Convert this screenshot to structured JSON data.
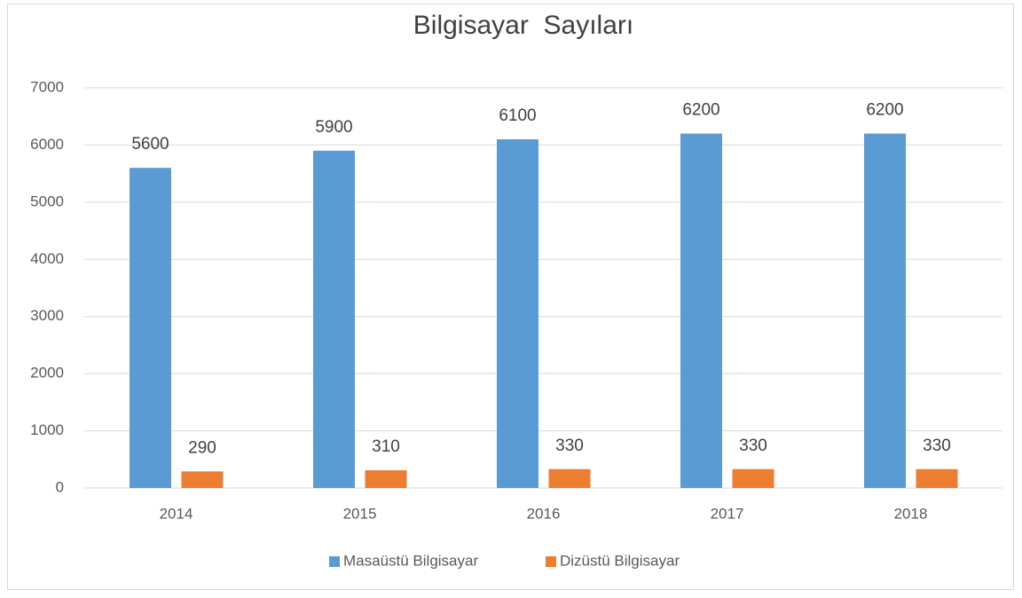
{
  "chart_data": {
    "type": "bar",
    "title": "Bilgisayar  Sayıları",
    "categories": [
      "2014",
      "2015",
      "2016",
      "2017",
      "2018"
    ],
    "series": [
      {
        "name": "Masaüstü Bilgisayar",
        "color": "#5b9bd5",
        "values": [
          5600,
          5900,
          6100,
          6200,
          6200
        ]
      },
      {
        "name": "Dizüstü Bilgisayar",
        "color": "#ed7d31",
        "values": [
          290,
          310,
          330,
          330,
          330
        ]
      }
    ],
    "ylim": [
      0,
      7000
    ],
    "yticks": [
      0,
      1000,
      2000,
      3000,
      4000,
      5000,
      6000,
      7000
    ],
    "grid": true,
    "legend": "bottom"
  }
}
